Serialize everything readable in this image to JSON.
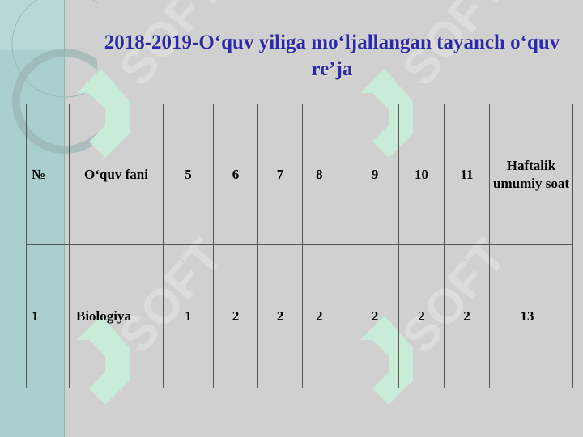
{
  "title": "2018-2019-O‘quv yiliga mo‘ljallangan tayanch o‘quv re’ja",
  "watermark": "SOFT",
  "table": {
    "headers": [
      "№",
      "O‘quv fani",
      "5",
      "6",
      "7",
      "8",
      "9",
      "10",
      "11",
      "Haftalik umumiy soat"
    ],
    "rows": [
      [
        "1",
        "Biologiya",
        "1",
        "2",
        "2",
        "2",
        "2",
        "2",
        "2",
        "13"
      ]
    ]
  },
  "colors": {
    "title": "#2a2ab0",
    "background": "#d0d0d0",
    "strip": "#a9cfcf"
  }
}
